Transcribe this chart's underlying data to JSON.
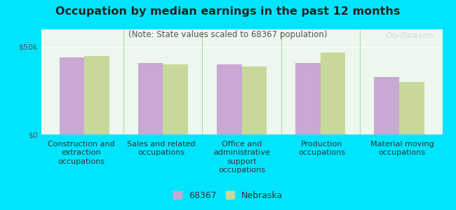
{
  "title": "Occupation by median earnings in the past 12 months",
  "subtitle": "(Note: State values scaled to 68367 population)",
  "categories": [
    "Construction and\nextraction\noccupations",
    "Sales and related\noccupations",
    "Office and\nadministrative\nsupport\noccupations",
    "Production\noccupations",
    "Material moving\noccupations"
  ],
  "values_68367": [
    44000,
    41000,
    40000,
    41000,
    33000
  ],
  "values_nebraska": [
    45000,
    40000,
    39000,
    47000,
    30000
  ],
  "color_68367": "#c9a8d4",
  "color_nebraska": "#c8d89a",
  "background_outer": "#00e5ff",
  "background_chart": "#edf7ed",
  "ylim": [
    0,
    60000
  ],
  "yticks": [
    0,
    50000
  ],
  "ytick_labels": [
    "$0",
    "$50k"
  ],
  "legend_labels": [
    "68367",
    "Nebraska"
  ],
  "watermark": "City-Data.com",
  "title_fontsize": 11.5,
  "subtitle_fontsize": 8.5,
  "tick_fontsize": 8,
  "legend_fontsize": 9,
  "bar_width": 0.32
}
